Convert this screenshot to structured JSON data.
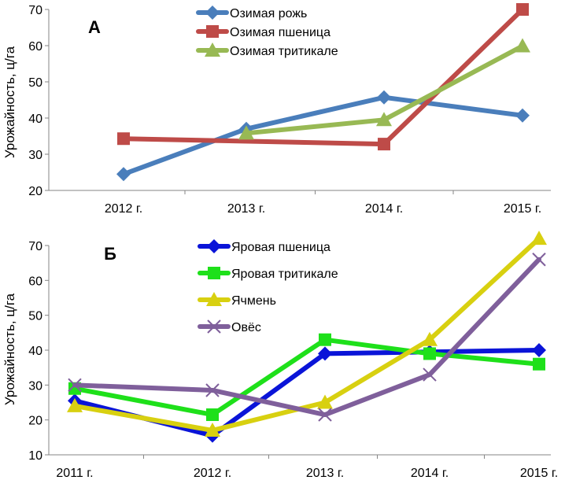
{
  "chart_data": [
    {
      "type": "line",
      "panel_label": "А",
      "ylabel": "Урожайность, ц/га",
      "categories": [
        "2012 г.",
        "2013 г.",
        "2014 г.",
        "2015 г."
      ],
      "ylim": [
        20,
        70
      ],
      "yticks": [
        20,
        30,
        40,
        50,
        60,
        70
      ],
      "grid": false,
      "legend": "top",
      "series": [
        {
          "name": "Озимая рожь",
          "color": "#4a7ebb",
          "marker": "diamond",
          "values": [
            24.5,
            37,
            45.7,
            40.7
          ]
        },
        {
          "name": "Озимая пшеница",
          "color": "#be4b48",
          "marker": "square",
          "values": [
            34.3,
            null,
            32.8,
            70
          ]
        },
        {
          "name": "Озимая тритикале",
          "color": "#98b954",
          "marker": "triangle",
          "values": [
            null,
            35.8,
            39.5,
            59.9
          ]
        }
      ]
    },
    {
      "type": "line",
      "panel_label": "Б",
      "ylabel": "Урожайность, ц/га",
      "categories": [
        "2011 г.",
        "2012 г.",
        "2013 г.",
        "2014 г.",
        "2015 г."
      ],
      "ylim": [
        10,
        70
      ],
      "yticks": [
        10,
        20,
        30,
        40,
        50,
        60,
        70
      ],
      "grid": false,
      "legend": "top",
      "series": [
        {
          "name": "Яровая пшеница",
          "color": "#0a14d8",
          "marker": "diamond",
          "values": [
            25.5,
            15.5,
            39,
            39.5,
            40
          ]
        },
        {
          "name": "Яровая тритикале",
          "color": "#1ee01a",
          "marker": "square",
          "values": [
            29,
            21.5,
            43,
            39,
            36
          ]
        },
        {
          "name": "Ячмень",
          "color": "#d8d010",
          "marker": "triangle",
          "values": [
            24,
            17,
            25,
            43,
            72
          ]
        },
        {
          "name": "Овёс",
          "color": "#7f5f9b",
          "marker": "x",
          "values": [
            30,
            28.5,
            21.5,
            33,
            66
          ]
        }
      ]
    }
  ]
}
